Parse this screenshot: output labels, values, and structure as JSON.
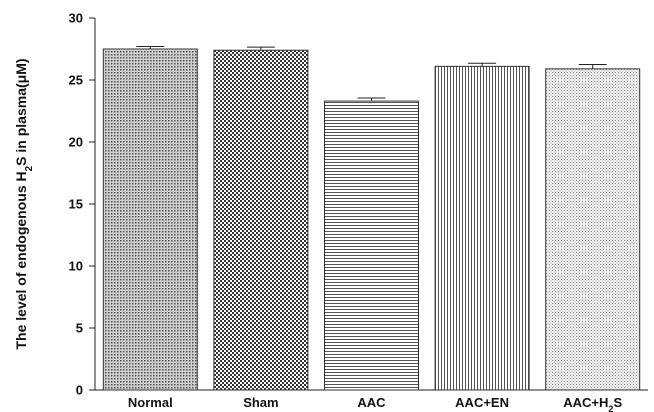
{
  "chart_data": {
    "type": "bar",
    "title": "",
    "xlabel": "",
    "ylabel": {
      "prefix": "The level of endogenous H",
      "subscript": "2",
      "suffix": "S in plasma(μM)"
    },
    "ylim": [
      0,
      30
    ],
    "yticks": [
      "0",
      "5",
      "10",
      "15",
      "20",
      "25",
      "30"
    ],
    "grid": false,
    "legend": "none",
    "categories": [
      {
        "label": "Normal",
        "sub": "",
        "label_after": ""
      },
      {
        "label": "Sham",
        "sub": "",
        "label_after": ""
      },
      {
        "label": "AAC",
        "sub": "",
        "label_after": ""
      },
      {
        "label": "AAC+EN",
        "sub": "",
        "label_after": ""
      },
      {
        "label": "AAC+H",
        "sub": "2",
        "label_after": "S"
      }
    ],
    "values": [
      27.5,
      27.4,
      23.3,
      26.1,
      25.9
    ],
    "errors": [
      0.2,
      0.25,
      0.25,
      0.25,
      0.35
    ],
    "patterns": [
      "fine-dots",
      "checker",
      "horizontal-lines",
      "vertical-lines",
      "fine-grid"
    ],
    "colors": {
      "bar_stroke": "#333333",
      "axis": "#222222",
      "pattern_ink": "#555555"
    }
  }
}
